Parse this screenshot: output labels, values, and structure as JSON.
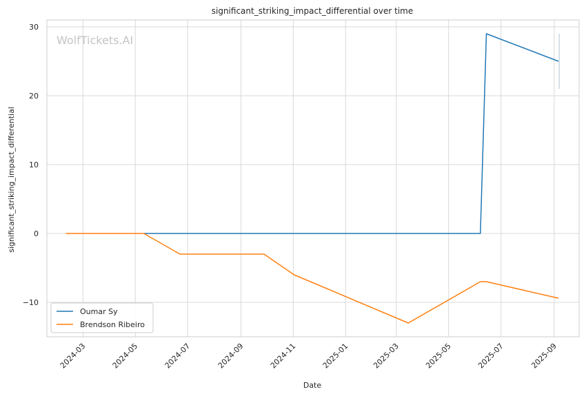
{
  "chart_data": {
    "type": "line",
    "title": "significant_striking_impact_differential over time",
    "xlabel": "Date",
    "ylabel": "significant_striking_impact_differential",
    "watermark": "WolfTickets.AI",
    "x_ticks": [
      "2024-03",
      "2024-05",
      "2024-07",
      "2024-09",
      "2024-11",
      "2025-01",
      "2025-03",
      "2025-05",
      "2025-07",
      "2025-09"
    ],
    "y_ticks": [
      -10,
      0,
      10,
      20,
      30
    ],
    "ylim": [
      -15,
      31
    ],
    "xlim": [
      "2024-01-19",
      "2025-09-30"
    ],
    "grid": true,
    "legend_position": "lower-left",
    "series": [
      {
        "name": "Oumar Sy",
        "color": "#1f77b4",
        "points": [
          {
            "x": "2024-05-11",
            "y": 0
          },
          {
            "x": "2025-06-07",
            "y": 0
          },
          {
            "x": "2025-06-14",
            "y": 29
          },
          {
            "x": "2025-09-06",
            "y": 25
          }
        ]
      },
      {
        "name": "Brendson Ribeiro",
        "color": "#ff7f0e",
        "points": [
          {
            "x": "2024-02-10",
            "y": 0
          },
          {
            "x": "2024-05-11",
            "y": 0
          },
          {
            "x": "2024-06-22",
            "y": -3
          },
          {
            "x": "2024-09-28",
            "y": -3
          },
          {
            "x": "2024-11-02",
            "y": -6
          },
          {
            "x": "2025-03-15",
            "y": -13
          },
          {
            "x": "2025-06-07",
            "y": -7
          },
          {
            "x": "2025-06-14",
            "y": -7
          },
          {
            "x": "2025-09-06",
            "y": -9.4
          }
        ]
      }
    ],
    "annotations": [
      {
        "x": "2025-09-06",
        "y_from": 21,
        "y_to": 29,
        "color": "#b0c4d4"
      }
    ]
  }
}
